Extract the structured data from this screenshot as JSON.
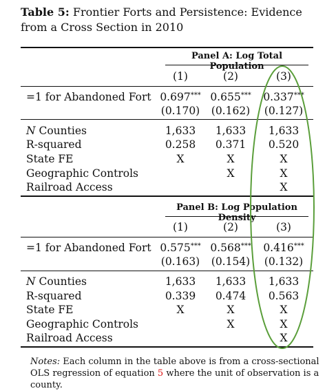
{
  "caption": {
    "label": "Table 5:",
    "title": "Frontier Forts and Persistence: Evidence from a Cross Section in 2010"
  },
  "panels": [
    {
      "title": "Panel A: Log Total Population",
      "columns": [
        "(1)",
        "(2)",
        "(3)"
      ],
      "main_row": {
        "label": "=1 for Abandoned Fort",
        "coefs": [
          "0.697",
          "0.655",
          "0.337"
        ],
        "stars": [
          "***",
          "***",
          "***"
        ],
        "ses": [
          "(0.170)",
          "(0.162)",
          "(0.127)"
        ]
      },
      "stats": [
        {
          "label_italic": "N",
          "label": " Counties",
          "values": [
            "1,633",
            "1,633",
            "1,633"
          ]
        },
        {
          "label_italic": "",
          "label": "R-squared",
          "values": [
            "0.258",
            "0.371",
            "0.520"
          ]
        },
        {
          "label_italic": "",
          "label": "State FE",
          "values": [
            "X",
            "X",
            "X"
          ]
        },
        {
          "label_italic": "",
          "label": "Geographic Controls",
          "values": [
            "",
            "X",
            "X"
          ]
        },
        {
          "label_italic": "",
          "label": "Railroad Access",
          "values": [
            "",
            "",
            "X"
          ]
        }
      ]
    },
    {
      "title": "Panel B: Log Population Density",
      "columns": [
        "(1)",
        "(2)",
        "(3)"
      ],
      "main_row": {
        "label": "=1 for Abandoned Fort",
        "coefs": [
          "0.575",
          "0.568",
          "0.416"
        ],
        "stars": [
          "***",
          "***",
          "***"
        ],
        "ses": [
          "(0.163)",
          "(0.154)",
          "(0.132)"
        ]
      },
      "stats": [
        {
          "label_italic": "N",
          "label": " Counties",
          "values": [
            "1,633",
            "1,633",
            "1,633"
          ]
        },
        {
          "label_italic": "",
          "label": "R-squared",
          "values": [
            "0.339",
            "0.474",
            "0.563"
          ]
        },
        {
          "label_italic": "",
          "label": "State FE",
          "values": [
            "X",
            "X",
            "X"
          ]
        },
        {
          "label_italic": "",
          "label": "Geographic Controls",
          "values": [
            "",
            "X",
            "X"
          ]
        },
        {
          "label_italic": "",
          "label": "Railroad Access",
          "values": [
            "",
            "",
            "X"
          ]
        }
      ]
    }
  ],
  "notes": {
    "label": "Notes:",
    "text_before": " Each column in the table above is from a cross-sectional OLS regression of equation ",
    "ref": "5",
    "text_after": " where the unit of observation is a county."
  },
  "annotation": {
    "color": "#5a9e3a",
    "description": "green-ellipse"
  }
}
